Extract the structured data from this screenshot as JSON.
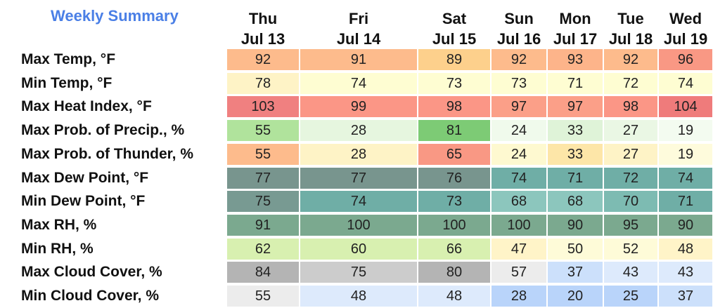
{
  "title": "Weekly Summary",
  "days": [
    {
      "dow": "Thu",
      "date": "Jul 13"
    },
    {
      "dow": "Fri",
      "date": "Jul 14"
    },
    {
      "dow": "Sat",
      "date": "Jul 15"
    },
    {
      "dow": "Sun",
      "date": "Jul 16"
    },
    {
      "dow": "Mon",
      "date": "Jul 17"
    },
    {
      "dow": "Tue",
      "date": "Jul 18"
    },
    {
      "dow": "Wed",
      "date": "Jul 19"
    }
  ],
  "rows": [
    {
      "label": "Max Temp, °F",
      "values": [
        "92",
        "91",
        "89",
        "92",
        "93",
        "92",
        "96"
      ],
      "colors": [
        "#fdbb8c",
        "#fdbb8c",
        "#fdd08c",
        "#fdbb8c",
        "#fdb48a",
        "#fdbb8c",
        "#f99884"
      ]
    },
    {
      "label": "Min Temp, °F",
      "values": [
        "78",
        "74",
        "73",
        "73",
        "71",
        "72",
        "74"
      ],
      "colors": [
        "#fef3c6",
        "#fefdd2",
        "#fefdd2",
        "#fefdd2",
        "#fefdd2",
        "#fefdd2",
        "#fefdd2"
      ]
    },
    {
      "label": "Max Heat Index, °F",
      "values": [
        "103",
        "99",
        "98",
        "97",
        "97",
        "98",
        "104"
      ],
      "colors": [
        "#f08080",
        "#fb9686",
        "#fb9686",
        "#fb9f88",
        "#fb9f88",
        "#fb9686",
        "#ef7b7b"
      ]
    },
    {
      "label": "Max Prob. of Precip., %",
      "values": [
        "55",
        "28",
        "81",
        "24",
        "33",
        "27",
        "19"
      ],
      "colors": [
        "#b0e39c",
        "#e6f6df",
        "#7dcb75",
        "#f0faec",
        "#dff3d8",
        "#eaf7e4",
        "#f3fbf0"
      ]
    },
    {
      "label": "Max Prob. of Thunder, %",
      "values": [
        "55",
        "28",
        "65",
        "24",
        "33",
        "27",
        "19"
      ],
      "colors": [
        "#fdbb8c",
        "#fef3c6",
        "#f99884",
        "#fef9d0",
        "#fde6a8",
        "#fef3c6",
        "#fefbdc"
      ]
    },
    {
      "label": "Max Dew Point, °F",
      "values": [
        "77",
        "77",
        "76",
        "74",
        "71",
        "72",
        "74"
      ],
      "colors": [
        "#78958e",
        "#78958e",
        "#78958e",
        "#6faea6",
        "#6faea6",
        "#6faea6",
        "#6faea6"
      ]
    },
    {
      "label": "Min Dew Point, °F",
      "values": [
        "75",
        "74",
        "73",
        "68",
        "68",
        "70",
        "71"
      ],
      "colors": [
        "#789a92",
        "#6faea6",
        "#6faea6",
        "#8cc6bd",
        "#8cc6bd",
        "#7dbbb2",
        "#6faea6"
      ]
    },
    {
      "label": "Max RH, %",
      "values": [
        "91",
        "100",
        "100",
        "100",
        "90",
        "95",
        "90"
      ],
      "colors": [
        "#7ba98f",
        "#7ba98f",
        "#7ba98f",
        "#7ba98f",
        "#7ba98f",
        "#7ba98f",
        "#7ba98f"
      ]
    },
    {
      "label": "Min RH, %",
      "values": [
        "62",
        "60",
        "66",
        "47",
        "50",
        "52",
        "48"
      ],
      "colors": [
        "#d8f0b0",
        "#d8f0b0",
        "#d8f0b0",
        "#fff4c8",
        "#fefbd8",
        "#fefbd8",
        "#fff4c8"
      ]
    },
    {
      "label": "Max Cloud Cover, %",
      "values": [
        "84",
        "75",
        "80",
        "57",
        "37",
        "43",
        "43"
      ],
      "colors": [
        "#b4b4b4",
        "#cccccc",
        "#b4b4b4",
        "#ececec",
        "#cce0fb",
        "#ddeafc",
        "#ddeafc"
      ]
    },
    {
      "label": "Min Cloud Cover, %",
      "values": [
        "55",
        "48",
        "48",
        "28",
        "20",
        "25",
        "37"
      ],
      "colors": [
        "#ececec",
        "#ddeafc",
        "#ddeafc",
        "#b9d4fa",
        "#b9d4fa",
        "#b9d4fa",
        "#cce0fb"
      ]
    }
  ]
}
